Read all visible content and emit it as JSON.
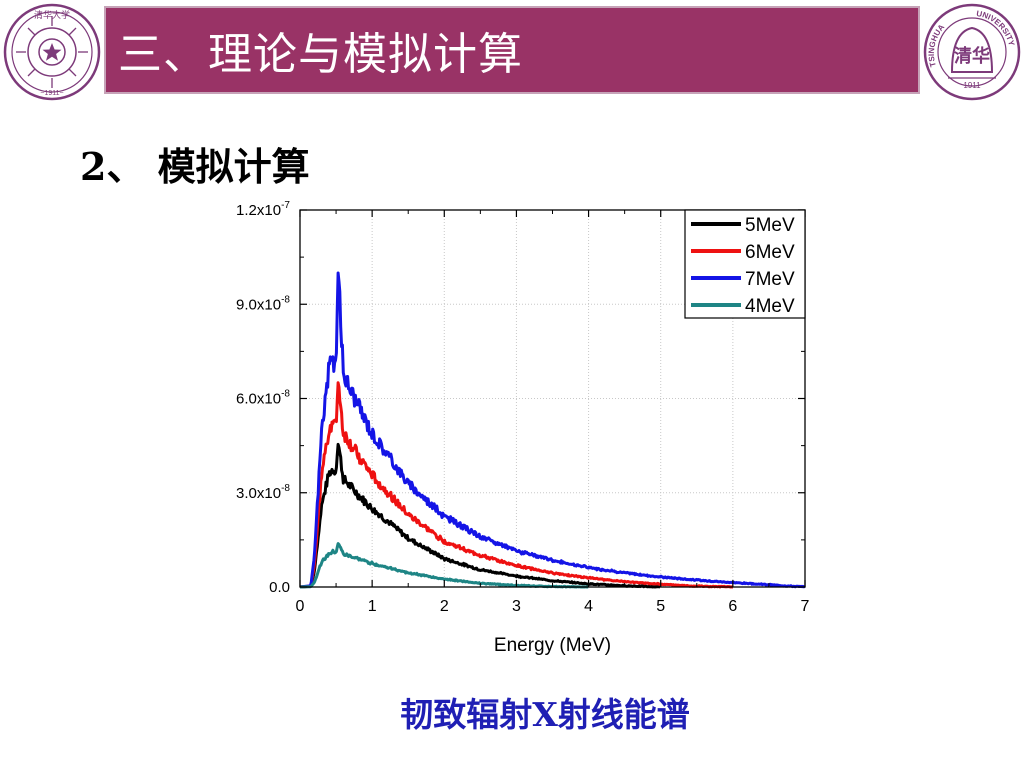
{
  "header": {
    "title": "三、理论与模拟计算"
  },
  "section": {
    "subtitle": "2、 模拟计算"
  },
  "caption": "韧致辐射X射线能谱",
  "colors": {
    "title_bar": "#993366",
    "caption": "#1f1fb4",
    "logo": "#7d3a7a"
  },
  "logos": {
    "left": {
      "icon": "tsinghua-seal-icon",
      "top_text": "清华大学",
      "bottom_text": "~1911~"
    },
    "right": {
      "icon": "tsinghua-bell-logo-icon",
      "arc_left": "TSINGHUA",
      "arc_right": "UNIVERSITY",
      "center_text": "清华",
      "year": "1911"
    }
  },
  "chart_data": {
    "type": "line",
    "xlabel": "Energy (MeV)",
    "ylabel": "",
    "xlim": [
      0,
      7
    ],
    "ylim": [
      0,
      1.2e-07
    ],
    "x_ticks": [
      "0",
      "1",
      "2",
      "3",
      "4",
      "5",
      "6",
      "7"
    ],
    "y_ticks": [
      {
        "value": 0,
        "label": "0.0"
      },
      {
        "value": 3e-08,
        "label": "3.0x10",
        "exp": "-8"
      },
      {
        "value": 6e-08,
        "label": "6.0x10",
        "exp": "-8"
      },
      {
        "value": 9e-08,
        "label": "9.0x10",
        "exp": "-8"
      },
      {
        "value": 1.2e-07,
        "label": "1.2x10",
        "exp": "-7"
      }
    ],
    "grid": true,
    "legend": "top-right",
    "series": [
      {
        "name": "5MeV",
        "color": "#000000",
        "x": [
          0,
          0.15,
          0.2,
          0.3,
          0.4,
          0.45,
          0.5,
          0.53,
          0.6,
          0.8,
          1.0,
          1.5,
          2.0,
          2.5,
          3.0,
          3.5,
          4.0,
          4.5,
          5.0
        ],
        "y": [
          0,
          2e-10,
          5e-09,
          2.6e-08,
          3.6e-08,
          3.75e-08,
          3.7e-08,
          4.6e-08,
          3.45e-08,
          2.95e-08,
          2.5e-08,
          1.55e-08,
          9e-09,
          5.5e-09,
          3.5e-09,
          2e-09,
          1e-09,
          4e-10,
          0
        ]
      },
      {
        "name": "6MeV",
        "color": "#ee1111",
        "x": [
          0,
          0.15,
          0.2,
          0.3,
          0.4,
          0.45,
          0.5,
          0.53,
          0.6,
          0.8,
          1.0,
          1.5,
          2.0,
          2.5,
          3.0,
          3.5,
          4.0,
          4.5,
          5.0,
          5.5,
          6.0
        ],
        "y": [
          0,
          3e-10,
          7e-09,
          3.6e-08,
          5e-08,
          5.25e-08,
          5.1e-08,
          6.6e-08,
          4.9e-08,
          4.2e-08,
          3.55e-08,
          2.3e-08,
          1.45e-08,
          1e-08,
          6.8e-09,
          4.5e-09,
          2.9e-09,
          1.7e-09,
          9e-10,
          3e-10,
          0
        ]
      },
      {
        "name": "7MeV",
        "color": "#1414e6",
        "x": [
          0,
          0.15,
          0.2,
          0.3,
          0.4,
          0.45,
          0.5,
          0.53,
          0.6,
          0.8,
          1.0,
          1.5,
          2.0,
          2.5,
          3.0,
          3.5,
          4.0,
          4.5,
          5.0,
          5.5,
          6.0,
          6.5,
          7.0
        ],
        "y": [
          0,
          4e-10,
          1e-08,
          5e-08,
          6.9e-08,
          7.2e-08,
          7.1e-08,
          1.02e-07,
          6.8e-08,
          5.8e-08,
          4.9e-08,
          3.3e-08,
          2.25e-08,
          1.6e-08,
          1.15e-08,
          8.5e-09,
          6.2e-09,
          4.5e-09,
          3.2e-09,
          2.2e-09,
          1.4e-09,
          7e-10,
          0
        ]
      },
      {
        "name": "4MeV",
        "color": "#1e8585",
        "x": [
          0,
          0.15,
          0.2,
          0.3,
          0.4,
          0.45,
          0.5,
          0.53,
          0.6,
          0.8,
          1.0,
          1.5,
          2.0,
          2.5,
          3.0,
          3.5,
          4.0
        ],
        "y": [
          0,
          1e-10,
          1.5e-09,
          8e-09,
          1.05e-08,
          1.12e-08,
          1.1e-08,
          1.4e-08,
          1.05e-08,
          9e-09,
          7.5e-09,
          4.5e-09,
          2.5e-09,
          1.2e-09,
          5e-10,
          1.5e-10,
          0
        ]
      }
    ]
  }
}
